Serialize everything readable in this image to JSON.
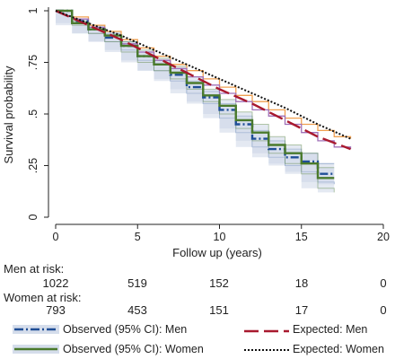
{
  "chart_data": {
    "type": "line",
    "xlabel": "Follow up (years)",
    "ylabel": "Survival probability",
    "xlim": [
      0,
      20
    ],
    "ylim": [
      0,
      1
    ],
    "xticks": [
      "0",
      "5",
      "10",
      "15",
      "20"
    ],
    "yticks": [
      "0",
      ".25",
      ".5",
      ".75",
      "1"
    ],
    "grid": false,
    "series": [
      {
        "name": "Observed (95% CI): Men",
        "color": "#1f4e96",
        "style": "dash-dot",
        "x": [
          0,
          1,
          2,
          3,
          4,
          5,
          6,
          7,
          8,
          9,
          10,
          11,
          12,
          13,
          14,
          15,
          16,
          17
        ],
        "y": [
          1.0,
          0.95,
          0.91,
          0.87,
          0.83,
          0.78,
          0.74,
          0.69,
          0.63,
          0.58,
          0.52,
          0.45,
          0.38,
          0.33,
          0.29,
          0.27,
          0.21,
          0.21
        ],
        "ci_lower": [
          1.0,
          0.94,
          0.89,
          0.85,
          0.81,
          0.76,
          0.71,
          0.66,
          0.6,
          0.55,
          0.48,
          0.41,
          0.34,
          0.29,
          0.25,
          0.22,
          0.17,
          0.16
        ],
        "ci_upper": [
          1.0,
          0.96,
          0.93,
          0.89,
          0.85,
          0.8,
          0.76,
          0.72,
          0.66,
          0.61,
          0.55,
          0.49,
          0.42,
          0.37,
          0.33,
          0.31,
          0.26,
          0.26
        ]
      },
      {
        "name": "Observed (95% CI): Women",
        "color": "#4a7a2c",
        "style": "solid",
        "x": [
          0,
          1,
          2,
          3,
          4,
          5,
          6,
          7,
          8,
          9,
          10,
          11,
          12,
          13,
          14,
          15,
          16,
          17
        ],
        "y": [
          1.0,
          0.94,
          0.91,
          0.88,
          0.83,
          0.78,
          0.74,
          0.7,
          0.65,
          0.59,
          0.54,
          0.47,
          0.41,
          0.35,
          0.31,
          0.26,
          0.19,
          0.19
        ],
        "ci_lower": [
          1.0,
          0.93,
          0.89,
          0.85,
          0.8,
          0.75,
          0.71,
          0.67,
          0.62,
          0.56,
          0.5,
          0.43,
          0.37,
          0.31,
          0.26,
          0.21,
          0.14,
          0.12
        ],
        "ci_upper": [
          1.0,
          0.95,
          0.93,
          0.9,
          0.85,
          0.81,
          0.77,
          0.73,
          0.68,
          0.62,
          0.57,
          0.51,
          0.45,
          0.39,
          0.35,
          0.31,
          0.24,
          0.24
        ]
      },
      {
        "name": "Expected: Men",
        "color": "#a8192e",
        "style": "long-dash",
        "x": [
          0,
          2,
          4,
          6,
          8,
          10,
          12,
          14,
          16,
          18
        ],
        "y": [
          1.0,
          0.93,
          0.86,
          0.78,
          0.7,
          0.62,
          0.55,
          0.47,
          0.39,
          0.33
        ]
      },
      {
        "name": "Expected: Women",
        "color": "#111111",
        "style": "dotted",
        "x": [
          0,
          2,
          4,
          6,
          8,
          10,
          12,
          14,
          16,
          18
        ],
        "y": [
          1.0,
          0.94,
          0.88,
          0.81,
          0.74,
          0.67,
          0.6,
          0.53,
          0.45,
          0.38
        ]
      }
    ],
    "steps": [
      {
        "color": "#f0a050",
        "x": [
          0,
          1,
          2,
          3,
          4,
          5,
          6,
          7,
          8,
          9,
          10,
          11,
          12,
          13,
          14,
          15,
          16,
          17,
          18
        ],
        "y": [
          1.0,
          0.97,
          0.93,
          0.9,
          0.86,
          0.82,
          0.78,
          0.74,
          0.71,
          0.67,
          0.63,
          0.59,
          0.56,
          0.52,
          0.48,
          0.45,
          0.42,
          0.39,
          0.38
        ]
      },
      {
        "color": "#a070b8",
        "x": [
          0,
          1,
          2,
          3,
          4,
          5,
          6,
          7,
          8,
          9,
          10,
          11,
          12,
          13,
          14,
          15,
          16,
          17,
          18
        ],
        "y": [
          1.0,
          0.96,
          0.92,
          0.88,
          0.84,
          0.8,
          0.76,
          0.72,
          0.68,
          0.64,
          0.6,
          0.56,
          0.52,
          0.49,
          0.45,
          0.41,
          0.37,
          0.34,
          0.33
        ]
      }
    ]
  },
  "risk_table": {
    "men_label": "Men at risk:",
    "men_values": [
      "1022",
      "519",
      "152",
      "18",
      "0"
    ],
    "women_label": "Women at risk:",
    "women_values": [
      "793",
      "453",
      "151",
      "17",
      "0"
    ]
  },
  "legend": {
    "observed_men": "Observed (95% CI): Men",
    "expected_men": "Expected: Men",
    "observed_women": "Observed (95% CI): Women",
    "expected_women": "Expected: Women"
  }
}
